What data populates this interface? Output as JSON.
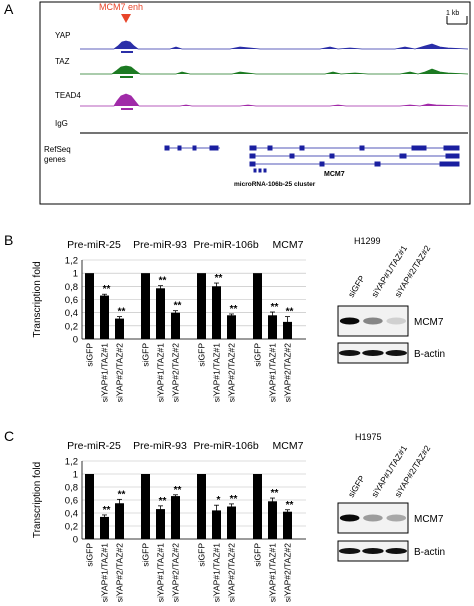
{
  "panel_letters": {
    "a": "A",
    "b": "B",
    "c": "C"
  },
  "panel_a": {
    "annotation": "MCM7 enh",
    "scale_bar": "1 kb",
    "tracks": [
      "YAP",
      "TAZ",
      "TEAD4",
      "IgG"
    ],
    "refseq_label_1": "RefSeq",
    "refseq_label_2": "genes",
    "cluster_label": "microRNA-106b-25 cluster",
    "gene_label": "MCM7",
    "colors": {
      "YAP": "#2b2fa8",
      "TAZ": "#1c7a22",
      "TEAD4": "#a02aa8",
      "IgG": "#222222",
      "genes": "#1a1fa0",
      "enh_marker": "#e8452a"
    }
  },
  "chart_data": [
    {
      "type": "bar",
      "panel": "B",
      "cell_line": "H1299",
      "ylabel": "Transcription fold",
      "ylim": [
        0,
        1.2
      ],
      "yticks": [
        "0",
        "0,2",
        "0,4",
        "0,6",
        "0,8",
        "1",
        "1,2"
      ],
      "groups": [
        "Pre-miR-25",
        "Pre-miR-93",
        "Pre-miR-106b",
        "MCM7"
      ],
      "categories": [
        "siGFP",
        "siYAP#1/TAZ#1",
        "siYAP#2/TAZ#2"
      ],
      "values": [
        [
          1.0,
          0.66,
          0.31
        ],
        [
          1.0,
          0.77,
          0.4
        ],
        [
          1.0,
          0.8,
          0.36
        ],
        [
          1.0,
          0.36,
          0.26
        ]
      ],
      "errors": [
        [
          0,
          0.02,
          0.03
        ],
        [
          0,
          0.04,
          0.03
        ],
        [
          0,
          0.05,
          0.02
        ],
        [
          0,
          0.05,
          0.08
        ]
      ],
      "significance": [
        [
          "",
          "**",
          "**"
        ],
        [
          "",
          "**",
          "**"
        ],
        [
          "",
          "**",
          "**"
        ],
        [
          "",
          "**",
          "**"
        ]
      ]
    },
    {
      "type": "bar",
      "panel": "C",
      "cell_line": "H1975",
      "ylabel": "Transcription fold",
      "ylim": [
        0,
        1.2
      ],
      "yticks": [
        "0",
        "0,2",
        "0,4",
        "0,6",
        "0,8",
        "1",
        "1,2"
      ],
      "groups": [
        "Pre-miR-25",
        "Pre-miR-93",
        "Pre-miR-106b",
        "MCM7"
      ],
      "categories": [
        "siGFP",
        "siYAP#1/TAZ#1",
        "siYAP#2/TAZ#2"
      ],
      "values": [
        [
          1.0,
          0.34,
          0.55
        ],
        [
          1.0,
          0.46,
          0.66
        ],
        [
          1.0,
          0.44,
          0.5
        ],
        [
          1.0,
          0.58,
          0.42
        ]
      ],
      "errors": [
        [
          0,
          0.03,
          0.06
        ],
        [
          0,
          0.05,
          0.02
        ],
        [
          0,
          0.08,
          0.04
        ],
        [
          0,
          0.05,
          0.03
        ]
      ],
      "significance": [
        [
          "",
          "**",
          "**"
        ],
        [
          "",
          "**",
          "**"
        ],
        [
          "",
          "*",
          "**"
        ],
        [
          "",
          "**",
          "**"
        ]
      ]
    }
  ],
  "blot_b": {
    "lanes": [
      "siGFP",
      "siYAP#1/TAZ#1",
      "siYAP#2/TAZ#2"
    ],
    "band_labels": [
      "MCM7",
      "B-actin"
    ],
    "cell_line": "H1299",
    "mcm7_intensity": [
      1.0,
      0.45,
      0.12
    ],
    "actin_intensity": [
      1.0,
      1.0,
      1.0
    ]
  },
  "blot_c": {
    "lanes": [
      "siGFP",
      "siYAP#1/TAZ#1",
      "siYAP#2/TAZ#2"
    ],
    "band_labels": [
      "MCM7",
      "B-actin"
    ],
    "cell_line": "H1975",
    "mcm7_intensity": [
      1.0,
      0.35,
      0.3
    ],
    "actin_intensity": [
      1.0,
      1.0,
      1.0
    ]
  }
}
